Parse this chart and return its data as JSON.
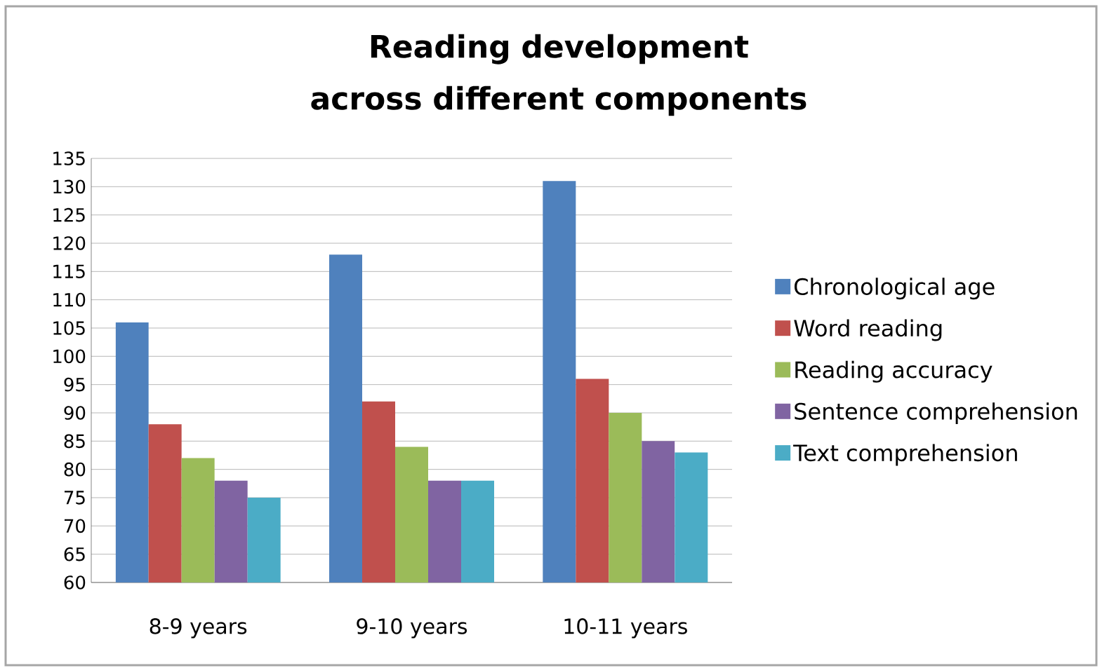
{
  "chart_data": {
    "type": "bar",
    "title": "Reading development across different components",
    "categories": [
      "8-9 years",
      "9-10 years",
      "10-11 years"
    ],
    "series": [
      {
        "name": "Chronological age",
        "color": "#4f81bd",
        "values": [
          106,
          118,
          131
        ]
      },
      {
        "name": "Word reading",
        "color": "#c0504d",
        "values": [
          88,
          92,
          96
        ]
      },
      {
        "name": "Reading accuracy",
        "color": "#9bbb59",
        "values": [
          82,
          84,
          90
        ]
      },
      {
        "name": "Sentence comprehension",
        "color": "#8064a2",
        "values": [
          78,
          78,
          85
        ]
      },
      {
        "name": "Text comprehension",
        "color": "#4bacc6",
        "values": [
          75,
          78,
          83
        ]
      }
    ],
    "ylim": [
      60,
      135
    ],
    "yticks": [
      60,
      65,
      70,
      75,
      80,
      85,
      90,
      95,
      100,
      105,
      110,
      115,
      120,
      125,
      130,
      135
    ],
    "grid": "y",
    "legend": "right"
  }
}
